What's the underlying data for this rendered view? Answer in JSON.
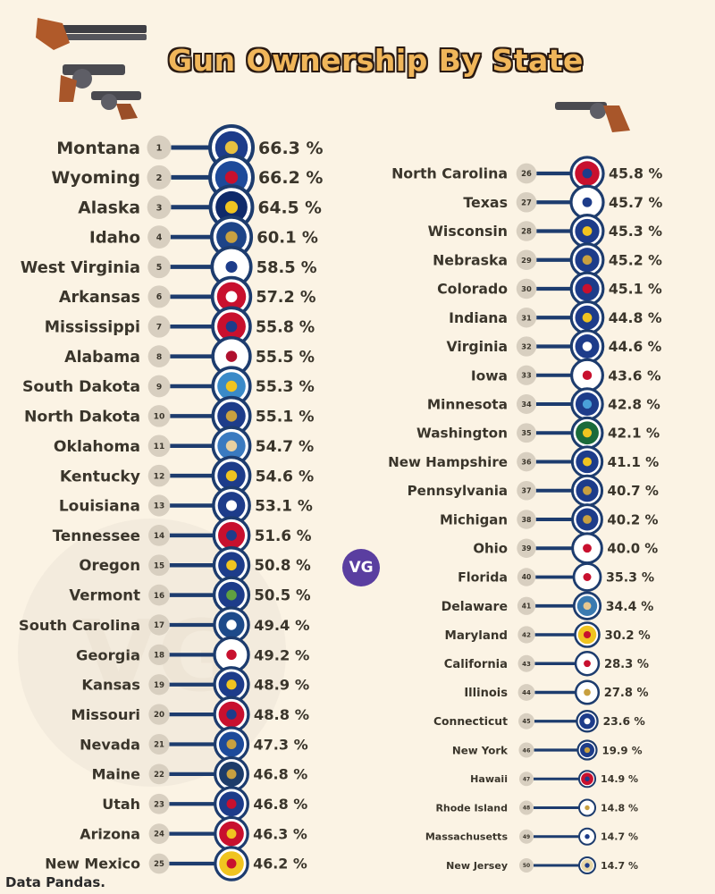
{
  "page": {
    "title": "Gun Ownership By State",
    "source": "Data Pandas.",
    "badge": "VG",
    "watermark": "VG"
  },
  "colors": {
    "background": "#fbf3e4",
    "title_fill": "#f0b65a",
    "navy": "#1d3c6e",
    "circle": "#d8cfc0",
    "text": "#3a352b"
  },
  "chart_data": {
    "type": "bar",
    "title": "Gun Ownership By State",
    "unit": "%",
    "states": [
      {
        "rank": 1,
        "name": "Montana",
        "value": 66.3,
        "label": "66.3 %",
        "flag": "#1d3c8a",
        "accent": "#e8c040"
      },
      {
        "rank": 2,
        "name": "Wyoming",
        "value": 66.2,
        "label": "66.2 %",
        "flag": "#1e4a9a",
        "accent": "#c8102e"
      },
      {
        "rank": 3,
        "name": "Alaska",
        "value": 64.5,
        "label": "64.5 %",
        "flag": "#0f2a6a",
        "accent": "#f0c420"
      },
      {
        "rank": 4,
        "name": "Idaho",
        "value": 60.1,
        "label": "60.1 %",
        "flag": "#1d4488",
        "accent": "#c8a040"
      },
      {
        "rank": 5,
        "name": "West Virginia",
        "value": 58.5,
        "label": "58.5 %",
        "flag": "#ffffff",
        "accent": "#1d3c8a"
      },
      {
        "rank": 6,
        "name": "Arkansas",
        "value": 57.2,
        "label": "57.2 %",
        "flag": "#c8102e",
        "accent": "#ffffff"
      },
      {
        "rank": 7,
        "name": "Mississippi",
        "value": 55.8,
        "label": "55.8 %",
        "flag": "#c8102e",
        "accent": "#1d3c8a"
      },
      {
        "rank": 8,
        "name": "Alabama",
        "value": 55.5,
        "label": "55.5 %",
        "flag": "#ffffff",
        "accent": "#b0102e"
      },
      {
        "rank": 9,
        "name": "South Dakota",
        "value": 55.3,
        "label": "55.3 %",
        "flag": "#3a8ac8",
        "accent": "#f0c420"
      },
      {
        "rank": 10,
        "name": "North Dakota",
        "value": 55.1,
        "label": "55.1 %",
        "flag": "#1d3c8a",
        "accent": "#c8a040"
      },
      {
        "rank": 11,
        "name": "Oklahoma",
        "value": 54.7,
        "label": "54.7 %",
        "flag": "#3a7ac0",
        "accent": "#e8d0a0"
      },
      {
        "rank": 12,
        "name": "Kentucky",
        "value": 54.6,
        "label": "54.6 %",
        "flag": "#1d3c8a",
        "accent": "#f0c420"
      },
      {
        "rank": 13,
        "name": "Louisiana",
        "value": 53.1,
        "label": "53.1 %",
        "flag": "#1d3c8a",
        "accent": "#ffffff"
      },
      {
        "rank": 14,
        "name": "Tennessee",
        "value": 51.6,
        "label": "51.6 %",
        "flag": "#c8102e",
        "accent": "#1d3c8a"
      },
      {
        "rank": 15,
        "name": "Oregon",
        "value": 50.8,
        "label": "50.8 %",
        "flag": "#1d3c8a",
        "accent": "#f0c420"
      },
      {
        "rank": 16,
        "name": "Vermont",
        "value": 50.5,
        "label": "50.5 %",
        "flag": "#1d3c8a",
        "accent": "#60a040"
      },
      {
        "rank": 17,
        "name": "South Carolina",
        "value": 49.4,
        "label": "49.4 %",
        "flag": "#1d4a8a",
        "accent": "#ffffff"
      },
      {
        "rank": 18,
        "name": "Georgia",
        "value": 49.2,
        "label": "49.2 %",
        "flag": "#ffffff",
        "accent": "#c8102e"
      },
      {
        "rank": 19,
        "name": "Kansas",
        "value": 48.9,
        "label": "48.9 %",
        "flag": "#1d3c8a",
        "accent": "#f0c420"
      },
      {
        "rank": 20,
        "name": "Missouri",
        "value": 48.8,
        "label": "48.8 %",
        "flag": "#c8102e",
        "accent": "#1d3c8a"
      },
      {
        "rank": 21,
        "name": "Nevada",
        "value": 47.3,
        "label": "47.3 %",
        "flag": "#1d4a9a",
        "accent": "#c8a040"
      },
      {
        "rank": 22,
        "name": "Maine",
        "value": 46.8,
        "label": "46.8 %",
        "flag": "#1d3c6a",
        "accent": "#c8a040"
      },
      {
        "rank": 23,
        "name": "Utah",
        "value": 46.8,
        "label": "46.8 %",
        "flag": "#1d3c8a",
        "accent": "#c8102e"
      },
      {
        "rank": 24,
        "name": "Arizona",
        "value": 46.3,
        "label": "46.3 %",
        "flag": "#c8102e",
        "accent": "#f0c420"
      },
      {
        "rank": 25,
        "name": "New Mexico",
        "value": 46.2,
        "label": "46.2 %",
        "flag": "#f0c420",
        "accent": "#c8102e"
      },
      {
        "rank": 26,
        "name": "North Carolina",
        "value": 45.8,
        "label": "45.8 %",
        "flag": "#c8102e",
        "accent": "#1d3c8a"
      },
      {
        "rank": 27,
        "name": "Texas",
        "value": 45.7,
        "label": "45.7 %",
        "flag": "#ffffff",
        "accent": "#1d3c8a"
      },
      {
        "rank": 28,
        "name": "Wisconsin",
        "value": 45.3,
        "label": "45.3 %",
        "flag": "#1d3c8a",
        "accent": "#f0c420"
      },
      {
        "rank": 29,
        "name": "Nebraska",
        "value": 45.2,
        "label": "45.2 %",
        "flag": "#1d3c8a",
        "accent": "#c8a040"
      },
      {
        "rank": 30,
        "name": "Colorado",
        "value": 45.1,
        "label": "45.1 %",
        "flag": "#1d3c8a",
        "accent": "#c8102e"
      },
      {
        "rank": 31,
        "name": "Indiana",
        "value": 44.8,
        "label": "44.8 %",
        "flag": "#1d3c8a",
        "accent": "#f0c420"
      },
      {
        "rank": 32,
        "name": "Virginia",
        "value": 44.6,
        "label": "44.6 %",
        "flag": "#1d3c8a",
        "accent": "#ffffff"
      },
      {
        "rank": 33,
        "name": "Iowa",
        "value": 43.6,
        "label": "43.6 %",
        "flag": "#ffffff",
        "accent": "#c8102e"
      },
      {
        "rank": 34,
        "name": "Minnesota",
        "value": 42.8,
        "label": "42.8 %",
        "flag": "#1d3c8a",
        "accent": "#4aa0d8"
      },
      {
        "rank": 35,
        "name": "Washington",
        "value": 42.1,
        "label": "42.1 %",
        "flag": "#1a6a3a",
        "accent": "#f0c420"
      },
      {
        "rank": 36,
        "name": "New Hampshire",
        "value": 41.1,
        "label": "41.1 %",
        "flag": "#1d3c8a",
        "accent": "#f0c420"
      },
      {
        "rank": 37,
        "name": "Pennsylvania",
        "value": 40.7,
        "label": "40.7 %",
        "flag": "#1d3c8a",
        "accent": "#c8a040"
      },
      {
        "rank": 38,
        "name": "Michigan",
        "value": 40.2,
        "label": "40.2 %",
        "flag": "#1d3c8a",
        "accent": "#c8a040"
      },
      {
        "rank": 39,
        "name": "Ohio",
        "value": 40.0,
        "label": "40.0 %",
        "flag": "#ffffff",
        "accent": "#c8102e"
      },
      {
        "rank": 40,
        "name": "Florida",
        "value": 35.3,
        "label": "35.3 %",
        "flag": "#ffffff",
        "accent": "#c8102e"
      },
      {
        "rank": 41,
        "name": "Delaware",
        "value": 34.4,
        "label": "34.4 %",
        "flag": "#3a7ab0",
        "accent": "#e8c890"
      },
      {
        "rank": 42,
        "name": "Maryland",
        "value": 30.2,
        "label": "30.2 %",
        "flag": "#f0c420",
        "accent": "#c8102e"
      },
      {
        "rank": 43,
        "name": "California",
        "value": 28.3,
        "label": "28.3 %",
        "flag": "#ffffff",
        "accent": "#c8102e"
      },
      {
        "rank": 44,
        "name": "Illinois",
        "value": 27.8,
        "label": "27.8 %",
        "flag": "#ffffff",
        "accent": "#c8a040"
      },
      {
        "rank": 45,
        "name": "Connecticut",
        "value": 23.6,
        "label": "23.6 %",
        "flag": "#1d3c8a",
        "accent": "#ffffff"
      },
      {
        "rank": 46,
        "name": "New York",
        "value": 19.9,
        "label": "19.9 %",
        "flag": "#1d3c8a",
        "accent": "#c8a040"
      },
      {
        "rank": 47,
        "name": "Hawaii",
        "value": 14.9,
        "label": "14.9 %",
        "flag": "#c8102e",
        "accent": "#1d3c8a"
      },
      {
        "rank": 48,
        "name": "Rhode Island",
        "value": 14.8,
        "label": "14.8 %",
        "flag": "#ffffff",
        "accent": "#c8a040"
      },
      {
        "rank": 49,
        "name": "Massachusetts",
        "value": 14.7,
        "label": "14.7 %",
        "flag": "#ffffff",
        "accent": "#1d3c8a"
      },
      {
        "rank": 50,
        "name": "New Jersey",
        "value": 14.7,
        "label": "14.7 %",
        "flag": "#e8d8a8",
        "accent": "#1d3c8a"
      }
    ]
  }
}
